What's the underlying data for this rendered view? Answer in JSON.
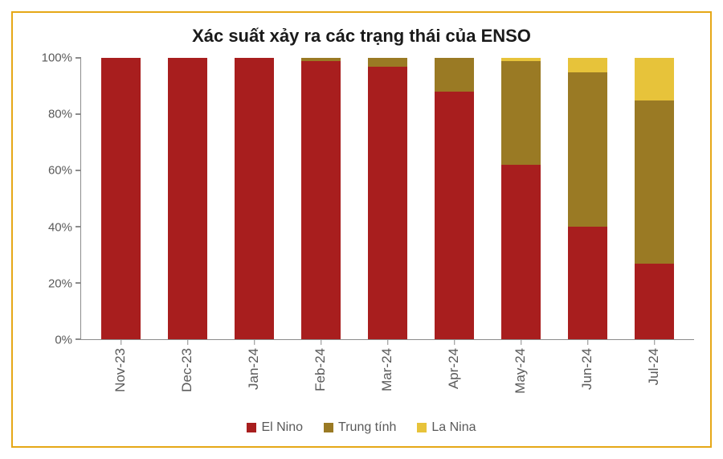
{
  "chart": {
    "type": "stacked-bar",
    "title": "Xác suất xảy ra các trạng thái của ENSO",
    "title_fontsize": 22,
    "title_color": "#1a1a1a",
    "border_color": "#e6a817",
    "axis_color": "#8c8c8c",
    "tick_label_color": "#5a5a5a",
    "tick_label_fontsize": 15,
    "x_label_fontsize": 17,
    "x_label_rotation_deg": -90,
    "background_color": "#ffffff",
    "ylim": [
      0,
      100
    ],
    "ytick_step": 20,
    "y_unit_suffix": "%",
    "bar_width_ratio": 0.58,
    "categories": [
      "Nov-23",
      "Dec-23",
      "Jan-24",
      "Feb-24",
      "Mar-24",
      "Apr-24",
      "May-24",
      "Jun-24",
      "Jul-24"
    ],
    "series": [
      {
        "key": "el_nino",
        "label": "El Nino",
        "color": "#a81e1e"
      },
      {
        "key": "trung_tinh",
        "label": "Trung tính",
        "color": "#9a7a24"
      },
      {
        "key": "la_nina",
        "label": "La Nina",
        "color": "#e7c33a"
      }
    ],
    "data": [
      {
        "el_nino": 100,
        "trung_tinh": 0,
        "la_nina": 0
      },
      {
        "el_nino": 100,
        "trung_tinh": 0,
        "la_nina": 0
      },
      {
        "el_nino": 100,
        "trung_tinh": 0,
        "la_nina": 0
      },
      {
        "el_nino": 99,
        "trung_tinh": 1,
        "la_nina": 0
      },
      {
        "el_nino": 97,
        "trung_tinh": 3,
        "la_nina": 0
      },
      {
        "el_nino": 88,
        "trung_tinh": 12,
        "la_nina": 0
      },
      {
        "el_nino": 62,
        "trung_tinh": 37,
        "la_nina": 1
      },
      {
        "el_nino": 40,
        "trung_tinh": 55,
        "la_nina": 5
      },
      {
        "el_nino": 27,
        "trung_tinh": 58,
        "la_nina": 15
      }
    ],
    "legend_fontsize": 16,
    "legend_text_color": "#5a5a5a"
  }
}
